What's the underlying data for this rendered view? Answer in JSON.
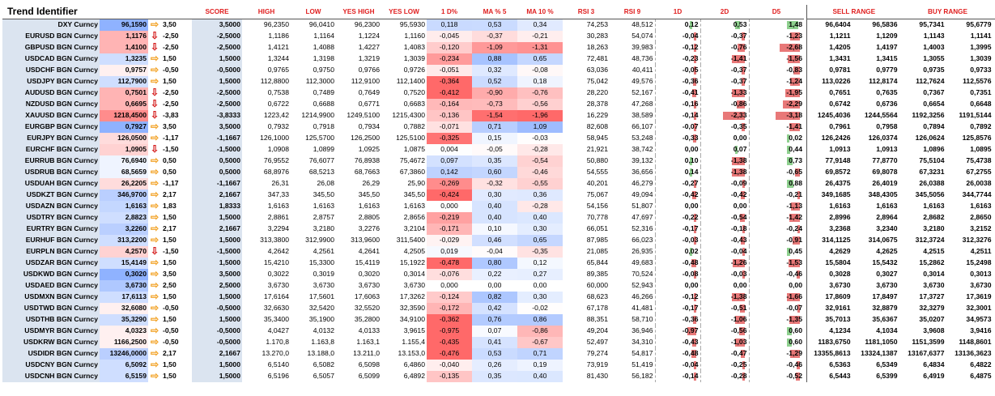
{
  "title": "Trend Identifier",
  "headers": {
    "score": "SCORE",
    "high": "HIGH",
    "low": "LOW",
    "yes_high": "YES HIGH",
    "yes_low": "YES LOW",
    "d1pct": "1 D%",
    "ma5": "MA % 5",
    "ma10": "MA 10 %",
    "rsi3": "RSI 3",
    "rsi9": "RSI 9",
    "d1": "1D",
    "d2": "2D",
    "d5": "D5",
    "sell_range": "SELL RANGE",
    "buy_range": "BUY RANGE"
  },
  "colors": {
    "up_arrow": "#f2a020",
    "down_arrow": "#d41a1a",
    "neg_bar": "#e87878",
    "pos_bar": "#8ed08e",
    "name_bg": "#dbe4f0",
    "header_red": "#e02020"
  },
  "rows": [
    {
      "name": "DXY Curncy",
      "price": "96,1590",
      "arrow": "up",
      "sc": "3,50",
      "score": "3,5000",
      "high": "96,2350",
      "low": "96,0410",
      "yhigh": "96,2300",
      "ylow": "95,5930",
      "d1pct": "0,118",
      "ma5": "0,53",
      "ma10": "0,34",
      "rsi3": "74,253",
      "rsi9": "48,512",
      "d1": "0,12",
      "d2": "0,53",
      "d5": "1,48",
      "s1": "96,6404",
      "s2": "96,5836",
      "b1": "95,7341",
      "b2": "95,6779"
    },
    {
      "name": "EURUSD BGN Curncy",
      "price": "1,1176",
      "arrow": "down",
      "sc": "-2,50",
      "score": "-2,5000",
      "high": "1,1186",
      "low": "1,1164",
      "yhigh": "1,1224",
      "ylow": "1,1160",
      "d1pct": "-0,045",
      "ma5": "-0,37",
      "ma10": "-0,21",
      "rsi3": "30,283",
      "rsi9": "54,074",
      "d1": "-0,04",
      "d2": "-0,37",
      "d5": "-1,23",
      "s1": "1,1211",
      "s2": "1,1209",
      "b1": "1,1143",
      "b2": "1,1141"
    },
    {
      "name": "GBPUSD BGN Curncy",
      "price": "1,4100",
      "arrow": "down",
      "sc": "-2,50",
      "score": "-2,5000",
      "high": "1,4121",
      "low": "1,4088",
      "yhigh": "1,4227",
      "ylow": "1,4083",
      "d1pct": "-0,120",
      "ma5": "-1,09",
      "ma10": "-1,31",
      "rsi3": "18,263",
      "rsi9": "39,983",
      "d1": "-0,12",
      "d2": "-0,76",
      "d5": "-2,68",
      "s1": "1,4205",
      "s2": "1,4197",
      "b1": "1,4003",
      "b2": "1,3995"
    },
    {
      "name": "USDCAD BGN Curncy",
      "price": "1,3235",
      "arrow": "up",
      "sc": "1,50",
      "score": "1,5000",
      "high": "1,3244",
      "low": "1,3198",
      "yhigh": "1,3219",
      "ylow": "1,3039",
      "d1pct": "-0,234",
      "ma5": "0,88",
      "ma10": "0,65",
      "rsi3": "72,481",
      "rsi9": "48,736",
      "d1": "-0,23",
      "d2": "-1,41",
      "d5": "-1,56",
      "s1": "1,3431",
      "s2": "1,3415",
      "b1": "1,3055",
      "b2": "1,3039"
    },
    {
      "name": "USDCHF BGN Curncy",
      "price": "0,9757",
      "arrow": "up",
      "sc": "-0,50",
      "score": "-0,5000",
      "high": "0,9765",
      "low": "0,9750",
      "yhigh": "0,9766",
      "ylow": "0,9726",
      "d1pct": "-0,051",
      "ma5": "0,32",
      "ma10": "-0,08",
      "rsi3": "63,036",
      "rsi9": "40,411",
      "d1": "-0,05",
      "d2": "-0,37",
      "d5": "-0,83",
      "s1": "0,9781",
      "s2": "0,9779",
      "b1": "0,9735",
      "b2": "0,9733"
    },
    {
      "name": "USDJPY BGN Curncy",
      "price": "112,7900",
      "arrow": "up",
      "sc": "1,50",
      "score": "1,5000",
      "high": "112,8800",
      "low": "112,3000",
      "yhigh": "112,9100",
      "ylow": "112,1400",
      "d1pct": "-0,364",
      "ma5": "0,52",
      "ma10": "0,18",
      "rsi3": "75,042",
      "rsi9": "49,576",
      "d1": "-0,36",
      "d2": "-0,37",
      "d5": "-1,24",
      "s1": "113,0226",
      "s2": "112,8174",
      "b1": "112,7624",
      "b2": "112,5576"
    },
    {
      "name": "AUDUSD BGN Curncy",
      "price": "0,7501",
      "arrow": "down",
      "sc": "-2,50",
      "score": "-2,5000",
      "high": "0,7538",
      "low": "0,7489",
      "yhigh": "0,7649",
      "ylow": "0,7520",
      "d1pct": "-0,412",
      "ma5": "-0,90",
      "ma10": "-0,76",
      "rsi3": "28,220",
      "rsi9": "52,167",
      "d1": "-0,41",
      "d2": "-1,33",
      "d5": "-1,95",
      "s1": "0,7651",
      "s2": "0,7635",
      "b1": "0,7367",
      "b2": "0,7351"
    },
    {
      "name": "NZDUSD BGN Curncy",
      "price": "0,6695",
      "arrow": "down",
      "sc": "-2,50",
      "score": "-2,5000",
      "high": "0,6722",
      "low": "0,6688",
      "yhigh": "0,6771",
      "ylow": "0,6683",
      "d1pct": "-0,164",
      "ma5": "-0,73",
      "ma10": "-0,56",
      "rsi3": "28,378",
      "rsi9": "47,268",
      "d1": "-0,16",
      "d2": "-0,86",
      "d5": "-2,29",
      "s1": "0,6742",
      "s2": "0,6736",
      "b1": "0,6654",
      "b2": "0,6648"
    },
    {
      "name": "XAUUSD BGN Curncy",
      "price": "1218,4500",
      "arrow": "down",
      "sc": "-3,83",
      "score": "-3,8333",
      "high": "1223,42",
      "low": "1214,9900",
      "yhigh": "1249,5100",
      "ylow": "1215,4300",
      "d1pct": "-0,136",
      "ma5": "-1,54",
      "ma10": "-1,96",
      "rsi3": "16,229",
      "rsi9": "38,589",
      "d1": "-0,14",
      "d2": "-2,33",
      "d5": "-3,18",
      "s1": "1245,4036",
      "s2": "1244,5564",
      "b1": "1192,3256",
      "b2": "1191,5144"
    },
    {
      "name": "EURGBP BGN Curncy",
      "price": "0,7927",
      "arrow": "up",
      "sc": "3,50",
      "score": "3,5000",
      "high": "0,7932",
      "low": "0,7918",
      "yhigh": "0,7934",
      "ylow": "0,7882",
      "d1pct": "-0,071",
      "ma5": "0,71",
      "ma10": "1,09",
      "rsi3": "82,608",
      "rsi9": "66,107",
      "d1": "-0,07",
      "d2": "-0,35",
      "d5": "-1,41",
      "s1": "0,7961",
      "s2": "0,7958",
      "b1": "0,7894",
      "b2": "0,7892"
    },
    {
      "name": "EURJPY BGN Curncy",
      "price": "126,0500",
      "arrow": "up",
      "sc": "-1,17",
      "score": "-1,1667",
      "high": "126,1000",
      "low": "125,5700",
      "yhigh": "126,2500",
      "ylow": "125,5100",
      "d1pct": "-0,325",
      "ma5": "0,15",
      "ma10": "-0,03",
      "rsi3": "58,945",
      "rsi9": "53,248",
      "d1": "-0,33",
      "d2": "0,00",
      "d5": "0,02",
      "s1": "126,2426",
      "s2": "126,0374",
      "b1": "126,0624",
      "b2": "125,8576"
    },
    {
      "name": "EURCHF BGN Curncy",
      "price": "1,0905",
      "arrow": "down",
      "sc": "-1,50",
      "score": "-1,5000",
      "high": "1,0908",
      "low": "1,0899",
      "yhigh": "1,0925",
      "ylow": "1,0875",
      "d1pct": "0,004",
      "ma5": "-0,05",
      "ma10": "-0,28",
      "rsi3": "21,921",
      "rsi9": "38,742",
      "d1": "0,00",
      "d2": "0,07",
      "d5": "0,44",
      "s1": "1,0913",
      "s2": "1,0913",
      "b1": "1,0896",
      "b2": "1,0895"
    },
    {
      "name": "EURRUB BGN Curncy",
      "price": "76,6940",
      "arrow": "up",
      "sc": "0,50",
      "score": "0,5000",
      "high": "76,9552",
      "low": "76,6077",
      "yhigh": "76,8938",
      "ylow": "75,4672",
      "d1pct": "0,097",
      "ma5": "0,35",
      "ma10": "-0,54",
      "rsi3": "50,880",
      "rsi9": "39,132",
      "d1": "0,10",
      "d2": "-1,38",
      "d5": "0,73",
      "s1": "77,9148",
      "s2": "77,8770",
      "b1": "75,5104",
      "b2": "75,4738"
    },
    {
      "name": "USDRUB BGN Curncy",
      "price": "68,5659",
      "arrow": "up",
      "sc": "0,50",
      "score": "0,5000",
      "high": "68,8976",
      "low": "68,5213",
      "yhigh": "68,7663",
      "ylow": "67,3860",
      "d1pct": "0,142",
      "ma5": "0,60",
      "ma10": "-0,46",
      "rsi3": "54,555",
      "rsi9": "36,656",
      "d1": "0,14",
      "d2": "-1,38",
      "d5": "-0,65",
      "s1": "69,8572",
      "s2": "69,8078",
      "b1": "67,3231",
      "b2": "67,2755"
    },
    {
      "name": "USDUAH BGN Curncy",
      "price": "26,2205",
      "arrow": "up",
      "sc": "-1,17",
      "score": "-1,1667",
      "high": "26,31",
      "low": "26,08",
      "yhigh": "26,29",
      "ylow": "25,90",
      "d1pct": "-0,269",
      "ma5": "-0,32",
      "ma10": "-0,55",
      "rsi3": "40,201",
      "rsi9": "46,279",
      "d1": "-0,27",
      "d2": "-0,09",
      "d5": "0,88",
      "s1": "26,4375",
      "s2": "26,4019",
      "b1": "26,0388",
      "b2": "26,0038"
    },
    {
      "name": "USDKZT BGN Curncy",
      "price": "346,9700",
      "arrow": "up",
      "sc": "2,17",
      "score": "2,1667",
      "high": "347,33",
      "low": "345,50",
      "yhigh": "345,50",
      "ylow": "345,50",
      "d1pct": "-0,424",
      "ma5": "0,30",
      "ma10": "0,36",
      "rsi3": "75,067",
      "rsi9": "49,094",
      "d1": "-0,42",
      "d2": "-0,42",
      "d5": "-0,21",
      "s1": "349,1685",
      "s2": "348,4305",
      "b1": "345,5056",
      "b2": "344,7744"
    },
    {
      "name": "USDAZN BGN Curncy",
      "price": "1,6163",
      "arrow": "up",
      "sc": "1,83",
      "score": "1,8333",
      "high": "1,6163",
      "low": "1,6163",
      "yhigh": "1,6163",
      "ylow": "1,6163",
      "d1pct": "0,000",
      "ma5": "0,40",
      "ma10": "-0,28",
      "rsi3": "54,156",
      "rsi9": "51,807",
      "d1": "0,00",
      "d2": "0,00",
      "d5": "-1,13",
      "s1": "1,6163",
      "s2": "1,6163",
      "b1": "1,6163",
      "b2": "1,6163"
    },
    {
      "name": "USDTRY BGN Curncy",
      "price": "2,8823",
      "arrow": "up",
      "sc": "1,50",
      "score": "1,5000",
      "high": "2,8861",
      "low": "2,8757",
      "yhigh": "2,8805",
      "ylow": "2,8656",
      "d1pct": "-0,219",
      "ma5": "0,40",
      "ma10": "0,40",
      "rsi3": "70,778",
      "rsi9": "47,697",
      "d1": "-0,22",
      "d2": "-0,54",
      "d5": "-1,42",
      "s1": "2,8996",
      "s2": "2,8964",
      "b1": "2,8682",
      "b2": "2,8650"
    },
    {
      "name": "EURTRY BGN Curncy",
      "price": "3,2260",
      "arrow": "up",
      "sc": "2,17",
      "score": "2,1667",
      "high": "3,2294",
      "low": "3,2180",
      "yhigh": "3,2276",
      "ylow": "3,2104",
      "d1pct": "-0,171",
      "ma5": "0,10",
      "ma10": "0,30",
      "rsi3": "66,051",
      "rsi9": "52,316",
      "d1": "-0,17",
      "d2": "-0,18",
      "d5": "-0,24",
      "s1": "3,2368",
      "s2": "3,2340",
      "b1": "3,2180",
      "b2": "3,2152"
    },
    {
      "name": "EURHUF BGN Curncy",
      "price": "313,2200",
      "arrow": "up",
      "sc": "1,50",
      "score": "1,5000",
      "high": "313,3800",
      "low": "312,9900",
      "yhigh": "313,9600",
      "ylow": "311,5400",
      "d1pct": "-0,029",
      "ma5": "0,46",
      "ma10": "0,65",
      "rsi3": "87,985",
      "rsi9": "66,023",
      "d1": "-0,03",
      "d2": "-0,43",
      "d5": "-0,91",
      "s1": "314,1125",
      "s2": "314,0675",
      "b1": "312,3724",
      "b2": "312,3276"
    },
    {
      "name": "EURPLN BGN Curncy",
      "price": "4,2570",
      "arrow": "down",
      "sc": "-1,50",
      "score": "-1,5000",
      "high": "4,2642",
      "low": "4,2561",
      "yhigh": "4,2641",
      "ylow": "4,2505",
      "d1pct": "0,019",
      "ma5": "-0,04",
      "ma10": "-0,35",
      "rsi3": "21,085",
      "rsi9": "26,935",
      "d1": "0,02",
      "d2": "-0,04",
      "d5": "0,45",
      "s1": "4,2629",
      "s2": "4,2625",
      "b1": "4,2515",
      "b2": "4,2511"
    },
    {
      "name": "USDZAR BGN Curncy",
      "price": "15,4149",
      "arrow": "up",
      "sc": "1,50",
      "score": "1,5000",
      "high": "15,4210",
      "low": "15,3300",
      "yhigh": "15,4119",
      "ylow": "15,1922",
      "d1pct": "-0,478",
      "ma5": "0,80",
      "ma10": "0,12",
      "rsi3": "65,844",
      "rsi9": "49,683",
      "d1": "-0,48",
      "d2": "-1,26",
      "d5": "-1,53",
      "s1": "15,5804",
      "s2": "15,5432",
      "b1": "15,2862",
      "b2": "15,2498"
    },
    {
      "name": "USDKWD BGN Curncy",
      "price": "0,3020",
      "arrow": "up",
      "sc": "3,50",
      "score": "3,5000",
      "high": "0,3022",
      "low": "0,3019",
      "yhigh": "0,3020",
      "ylow": "0,3014",
      "d1pct": "-0,076",
      "ma5": "0,22",
      "ma10": "0,27",
      "rsi3": "89,385",
      "rsi9": "70,524",
      "d1": "-0,08",
      "d2": "-0,03",
      "d5": "-0,46",
      "s1": "0,3028",
      "s2": "0,3027",
      "b1": "0,3014",
      "b2": "0,3013"
    },
    {
      "name": "USDAED BGN Curncy",
      "price": "3,6730",
      "arrow": "up",
      "sc": "2,50",
      "score": "2,5000",
      "high": "3,6730",
      "low": "3,6730",
      "yhigh": "3,6730",
      "ylow": "3,6730",
      "d1pct": "0,000",
      "ma5": "0,00",
      "ma10": "0,00",
      "rsi3": "60,000",
      "rsi9": "52,943",
      "d1": "0,00",
      "d2": "0,00",
      "d5": "0,00",
      "s1": "3,6730",
      "s2": "3,6730",
      "b1": "3,6730",
      "b2": "3,6730"
    },
    {
      "name": "USDMXN BGN Curncy",
      "price": "17,6113",
      "arrow": "up",
      "sc": "1,50",
      "score": "1,5000",
      "high": "17,6164",
      "low": "17,5601",
      "yhigh": "17,6063",
      "ylow": "17,3262",
      "d1pct": "-0,124",
      "ma5": "0,82",
      "ma10": "0,30",
      "rsi3": "68,623",
      "rsi9": "46,266",
      "d1": "-0,12",
      "d2": "-1,38",
      "d5": "-1,66",
      "s1": "17,8609",
      "s2": "17,8497",
      "b1": "17,3727",
      "b2": "17,3619"
    },
    {
      "name": "USDTWD BGN Curncy",
      "price": "32,6080",
      "arrow": "up",
      "sc": "-0,50",
      "score": "-0,5000",
      "high": "32,6630",
      "low": "32,5420",
      "yhigh": "32,5520",
      "ylow": "32,3590",
      "d1pct": "-0,172",
      "ma5": "0,42",
      "ma10": "-0,02",
      "rsi3": "67,178",
      "rsi9": "41,481",
      "d1": "-0,17",
      "d2": "-0,51",
      "d5": "-0,07",
      "s1": "32,9161",
      "s2": "32,8879",
      "b1": "32,3279",
      "b2": "32,3001"
    },
    {
      "name": "USDTHB BGN Curncy",
      "price": "35,3290",
      "arrow": "up",
      "sc": "1,50",
      "score": "1,5000",
      "high": "35,3400",
      "low": "35,1900",
      "yhigh": "35,2800",
      "ylow": "34,9100",
      "d1pct": "-0,362",
      "ma5": "0,76",
      "ma10": "0,86",
      "rsi3": "88,351",
      "rsi9": "58,710",
      "d1": "-0,36",
      "d2": "-1,06",
      "d5": "-1,35",
      "s1": "35,7013",
      "s2": "35,6367",
      "b1": "35,0207",
      "b2": "34,9573"
    },
    {
      "name": "USDMYR BGN Curncy",
      "price": "4,0323",
      "arrow": "up",
      "sc": "-0,50",
      "score": "-0,5000",
      "high": "4,0427",
      "low": "4,0132",
      "yhigh": "4,0133",
      "ylow": "3,9615",
      "d1pct": "-0,975",
      "ma5": "0,07",
      "ma10": "-0,86",
      "rsi3": "49,204",
      "rsi9": "36,946",
      "d1": "-0,97",
      "d2": "-0,56",
      "d5": "0,60",
      "s1": "4,1234",
      "s2": "4,1034",
      "b1": "3,9608",
      "b2": "3,9416"
    },
    {
      "name": "USDKRW BGN Curncy",
      "price": "1166,2500",
      "arrow": "up",
      "sc": "-0,50",
      "score": "-0,5000",
      "high": "1.170,8",
      "low": "1.163,8",
      "yhigh": "1.163,1",
      "ylow": "1.155,4",
      "d1pct": "-0,435",
      "ma5": "0,41",
      "ma10": "-0,67",
      "rsi3": "52,497",
      "rsi9": "34,310",
      "d1": "-0,43",
      "d2": "-1,03",
      "d5": "0,60",
      "s1": "1183,6750",
      "s2": "1181,1050",
      "b1": "1151,3599",
      "b2": "1148,8601"
    },
    {
      "name": "USDIDR BGN Curncy",
      "price": "13246,0000",
      "arrow": "up",
      "sc": "2,17",
      "score": "2,1667",
      "high": "13.270,0",
      "low": "13.188,0",
      "yhigh": "13.211,0",
      "ylow": "13.153,0",
      "d1pct": "-0,476",
      "ma5": "0,53",
      "ma10": "0,71",
      "rsi3": "79,274",
      "rsi9": "54,817",
      "d1": "-0,48",
      "d2": "-0,47",
      "d5": "-1,29",
      "s1": "13355,8613",
      "s2": "13324,1387",
      "b1": "13167,6377",
      "b2": "13136,3623"
    },
    {
      "name": "USDCNY BGN Curncy",
      "price": "6,5092",
      "arrow": "up",
      "sc": "1,50",
      "score": "1,5000",
      "high": "6,5140",
      "low": "6,5082",
      "yhigh": "6,5098",
      "ylow": "6,4860",
      "d1pct": "-0,040",
      "ma5": "0,26",
      "ma10": "0,19",
      "rsi3": "73,919",
      "rsi9": "51,419",
      "d1": "-0,04",
      "d2": "-0,25",
      "d5": "-0,46",
      "s1": "6,5363",
      "s2": "6,5349",
      "b1": "6,4834",
      "b2": "6,4822"
    },
    {
      "name": "USDCNH BGN Curncy",
      "price": "6,5159",
      "arrow": "up",
      "sc": "1,50",
      "score": "1,5000",
      "high": "6,5196",
      "low": "6,5057",
      "yhigh": "6,5099",
      "ylow": "6,4892",
      "d1pct": "-0,135",
      "ma5": "0,35",
      "ma10": "0,40",
      "rsi3": "81,430",
      "rsi9": "56,182",
      "d1": "-0,14",
      "d2": "-0,28",
      "d5": "-0,52",
      "s1": "6,5443",
      "s2": "6,5399",
      "b1": "6,4919",
      "b2": "6,4875"
    }
  ]
}
